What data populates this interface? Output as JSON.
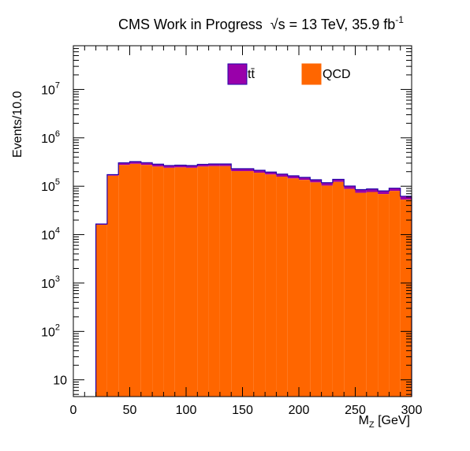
{
  "title": {
    "main": "CMS Work in Progress",
    "energy": "√s = 13 TeV, 35.9 fb",
    "lumi_exp": "-1"
  },
  "legend": {
    "ttbar_label": "tt̄",
    "qcd_label": "QCD"
  },
  "colors": {
    "ttbar": "#9900aa",
    "ttbar_edge": "#2200aa",
    "qcd": "#ff6600"
  },
  "chart_data": {
    "type": "bar",
    "stacked": true,
    "log_y": true,
    "xlabel": "M_Z [GeV]",
    "ylabel": "Events/10.0",
    "xlim": [
      0,
      300
    ],
    "ylim": [
      4.5,
      80000000
    ],
    "bin_width": 10,
    "x_ticks": [
      0,
      50,
      100,
      150,
      200,
      250,
      300
    ],
    "y_tick_labels": [
      "10",
      "10^2",
      "10^3",
      "10^4",
      "10^5",
      "10^6",
      "10^7"
    ],
    "bin_edges": [
      20,
      30,
      40,
      50,
      60,
      70,
      80,
      90,
      100,
      110,
      120,
      130,
      140,
      150,
      160,
      170,
      180,
      190,
      200,
      210,
      220,
      230,
      240,
      250,
      260,
      270,
      280,
      290,
      300
    ],
    "series": [
      {
        "name": "QCD",
        "values": [
          16000,
          165000,
          275000,
          290000,
          275000,
          255000,
          240000,
          245000,
          240000,
          255000,
          260000,
          260000,
          205000,
          205000,
          190000,
          175000,
          158000,
          145000,
          135000,
          120000,
          103000,
          123000,
          88000,
          73000,
          76000,
          69000,
          80000,
          53000
        ]
      },
      {
        "name": "tt̄",
        "values": [
          600,
          9000,
          30000,
          32000,
          32000,
          30000,
          28000,
          27000,
          27000,
          28000,
          28000,
          28000,
          25000,
          25000,
          23000,
          21000,
          20000,
          19000,
          17000,
          16000,
          15000,
          16000,
          13000,
          12000,
          12000,
          11000,
          11000,
          9000
        ]
      }
    ]
  }
}
